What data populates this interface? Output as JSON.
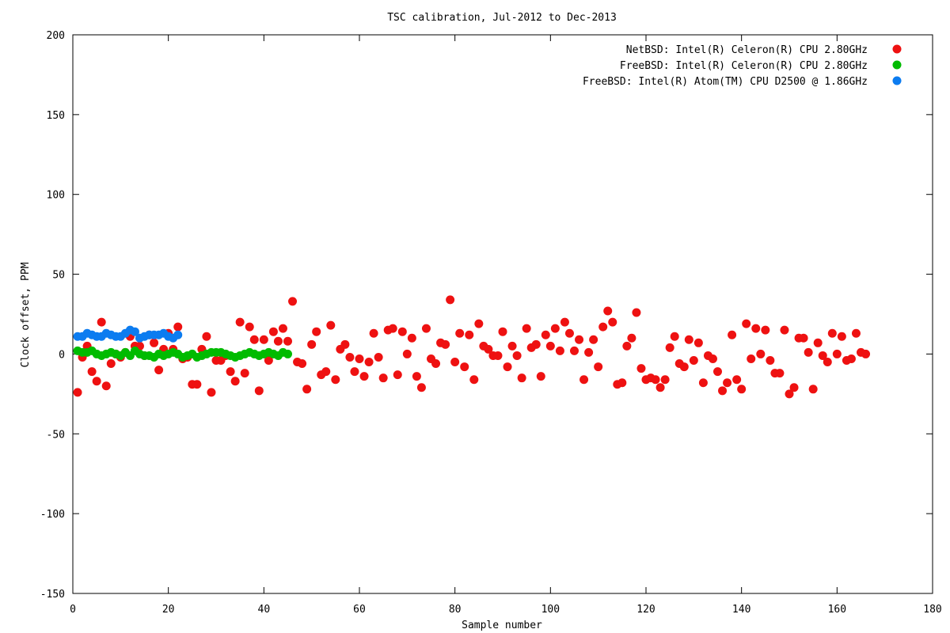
{
  "chart_data": {
    "type": "scatter",
    "title": "TSC calibration, Jul-2012 to Dec-2013",
    "xlabel": "Sample number",
    "ylabel": "Clock offset, PPM",
    "xlim": [
      0,
      180
    ],
    "ylim": [
      -150,
      200
    ],
    "xticks": [
      0,
      20,
      40,
      60,
      80,
      100,
      120,
      140,
      160,
      180
    ],
    "yticks": [
      -150,
      -100,
      -50,
      0,
      50,
      100,
      150,
      200
    ],
    "grid": false,
    "legend_position": "top-right",
    "series": [
      {
        "name": "NetBSD: Intel(R) Celeron(R) CPU 2.80GHz",
        "color": "#ee1111",
        "points": [
          [
            1,
            -24
          ],
          [
            2,
            -2
          ],
          [
            3,
            5
          ],
          [
            4,
            -11
          ],
          [
            5,
            -17
          ],
          [
            6,
            20
          ],
          [
            7,
            -20
          ],
          [
            8,
            -6
          ],
          [
            9,
            0
          ],
          [
            10,
            -2
          ],
          [
            11,
            1
          ],
          [
            12,
            11
          ],
          [
            13,
            5
          ],
          [
            14,
            5
          ],
          [
            15,
            -1
          ],
          [
            16,
            12
          ],
          [
            17,
            7
          ],
          [
            18,
            -10
          ],
          [
            19,
            3
          ],
          [
            20,
            13
          ],
          [
            21,
            3
          ],
          [
            22,
            17
          ],
          [
            23,
            -3
          ],
          [
            24,
            -2
          ],
          [
            25,
            -19
          ],
          [
            26,
            -19
          ],
          [
            27,
            3
          ],
          [
            28,
            11
          ],
          [
            29,
            -24
          ],
          [
            30,
            -4
          ],
          [
            31,
            -4
          ],
          [
            32,
            -1
          ],
          [
            33,
            -11
          ],
          [
            34,
            -17
          ],
          [
            35,
            20
          ],
          [
            36,
            -12
          ],
          [
            37,
            17
          ],
          [
            38,
            9
          ],
          [
            39,
            -23
          ],
          [
            40,
            9
          ],
          [
            41,
            -4
          ],
          [
            42,
            14
          ],
          [
            43,
            8
          ],
          [
            44,
            16
          ],
          [
            45,
            8
          ],
          [
            46,
            33
          ],
          [
            47,
            -5
          ],
          [
            48,
            -6
          ],
          [
            49,
            -22
          ],
          [
            50,
            6
          ],
          [
            51,
            14
          ],
          [
            52,
            -13
          ],
          [
            53,
            -11
          ],
          [
            54,
            18
          ],
          [
            55,
            -16
          ],
          [
            56,
            3
          ],
          [
            57,
            6
          ],
          [
            58,
            -2
          ],
          [
            59,
            -11
          ],
          [
            60,
            -3
          ],
          [
            61,
            -14
          ],
          [
            62,
            -5
          ],
          [
            63,
            13
          ],
          [
            64,
            -2
          ],
          [
            65,
            -15
          ],
          [
            66,
            15
          ],
          [
            67,
            16
          ],
          [
            68,
            -13
          ],
          [
            69,
            14
          ],
          [
            70,
            0
          ],
          [
            71,
            10
          ],
          [
            72,
            -14
          ],
          [
            73,
            -21
          ],
          [
            74,
            16
          ],
          [
            75,
            -3
          ],
          [
            76,
            -6
          ],
          [
            77,
            7
          ],
          [
            78,
            6
          ],
          [
            79,
            34
          ],
          [
            80,
            -5
          ],
          [
            81,
            13
          ],
          [
            82,
            -8
          ],
          [
            83,
            12
          ],
          [
            84,
            -16
          ],
          [
            85,
            19
          ],
          [
            86,
            5
          ],
          [
            87,
            3
          ],
          [
            88,
            -1
          ],
          [
            89,
            -1
          ],
          [
            90,
            14
          ],
          [
            91,
            -8
          ],
          [
            92,
            5
          ],
          [
            93,
            -1
          ],
          [
            94,
            -15
          ],
          [
            95,
            16
          ],
          [
            96,
            4
          ],
          [
            97,
            6
          ],
          [
            98,
            -14
          ],
          [
            99,
            12
          ],
          [
            100,
            5
          ],
          [
            101,
            16
          ],
          [
            102,
            2
          ],
          [
            103,
            20
          ],
          [
            104,
            13
          ],
          [
            105,
            2
          ],
          [
            106,
            9
          ],
          [
            107,
            -16
          ],
          [
            108,
            1
          ],
          [
            109,
            9
          ],
          [
            110,
            -8
          ],
          [
            111,
            17
          ],
          [
            112,
            27
          ],
          [
            113,
            20
          ],
          [
            114,
            -19
          ],
          [
            115,
            -18
          ],
          [
            116,
            5
          ],
          [
            117,
            10
          ],
          [
            118,
            26
          ],
          [
            119,
            -9
          ],
          [
            120,
            -16
          ],
          [
            121,
            -15
          ],
          [
            122,
            -16
          ],
          [
            123,
            -21
          ],
          [
            124,
            -16
          ],
          [
            125,
            4
          ],
          [
            126,
            11
          ],
          [
            127,
            -6
          ],
          [
            128,
            -8
          ],
          [
            129,
            9
          ],
          [
            130,
            -4
          ],
          [
            131,
            7
          ],
          [
            132,
            -18
          ],
          [
            133,
            -1
          ],
          [
            134,
            -3
          ],
          [
            135,
            -11
          ],
          [
            136,
            -23
          ],
          [
            137,
            -18
          ],
          [
            138,
            12
          ],
          [
            139,
            -16
          ],
          [
            140,
            -22
          ],
          [
            141,
            19
          ],
          [
            142,
            -3
          ],
          [
            143,
            16
          ],
          [
            144,
            0
          ],
          [
            145,
            15
          ],
          [
            146,
            -4
          ],
          [
            147,
            -12
          ],
          [
            148,
            -12
          ],
          [
            149,
            15
          ],
          [
            150,
            -25
          ],
          [
            151,
            -21
          ],
          [
            152,
            10
          ],
          [
            153,
            10
          ],
          [
            154,
            1
          ],
          [
            155,
            -22
          ],
          [
            156,
            7
          ],
          [
            157,
            -1
          ],
          [
            158,
            -5
          ],
          [
            159,
            13
          ],
          [
            160,
            0
          ],
          [
            161,
            11
          ],
          [
            162,
            -4
          ],
          [
            163,
            -3
          ],
          [
            164,
            13
          ],
          [
            165,
            1
          ],
          [
            166,
            0
          ]
        ]
      },
      {
        "name": "FreeBSD: Intel(R) Celeron(R) CPU 2.80GHz",
        "color": "#00bb00",
        "points": [
          [
            1,
            2
          ],
          [
            2,
            1
          ],
          [
            3,
            1
          ],
          [
            4,
            2
          ],
          [
            5,
            0
          ],
          [
            6,
            -1
          ],
          [
            7,
            0
          ],
          [
            8,
            1
          ],
          [
            9,
            0
          ],
          [
            10,
            -1
          ],
          [
            11,
            1
          ],
          [
            12,
            -1
          ],
          [
            13,
            2
          ],
          [
            14,
            0
          ],
          [
            15,
            -1
          ],
          [
            16,
            -1
          ],
          [
            17,
            -2
          ],
          [
            18,
            0
          ],
          [
            19,
            -1
          ],
          [
            20,
            0
          ],
          [
            21,
            1
          ],
          [
            22,
            0
          ],
          [
            23,
            -2
          ],
          [
            24,
            -1
          ],
          [
            25,
            0
          ],
          [
            26,
            -2
          ],
          [
            27,
            -1
          ],
          [
            28,
            0
          ],
          [
            29,
            1
          ],
          [
            30,
            1
          ],
          [
            31,
            1
          ],
          [
            32,
            0
          ],
          [
            33,
            -1
          ],
          [
            34,
            -2
          ],
          [
            35,
            -1
          ],
          [
            36,
            0
          ],
          [
            37,
            1
          ],
          [
            38,
            0
          ],
          [
            39,
            -1
          ],
          [
            40,
            0
          ],
          [
            41,
            1
          ],
          [
            42,
            0
          ],
          [
            43,
            -1
          ],
          [
            44,
            1
          ],
          [
            45,
            0
          ]
        ]
      },
      {
        "name": "FreeBSD: Intel(R) Atom(TM) CPU D2500 @ 1.86GHz",
        "color": "#0c7cf0",
        "points": [
          [
            1,
            11
          ],
          [
            2,
            11
          ],
          [
            3,
            13
          ],
          [
            4,
            12
          ],
          [
            5,
            11
          ],
          [
            6,
            11
          ],
          [
            7,
            13
          ],
          [
            8,
            12
          ],
          [
            9,
            11
          ],
          [
            10,
            11
          ],
          [
            11,
            13
          ],
          [
            12,
            15
          ],
          [
            13,
            14
          ],
          [
            14,
            10
          ],
          [
            15,
            11
          ],
          [
            16,
            12
          ],
          [
            17,
            12
          ],
          [
            18,
            12
          ],
          [
            19,
            13
          ],
          [
            20,
            11
          ],
          [
            21,
            10
          ],
          [
            22,
            12
          ]
        ]
      }
    ]
  }
}
